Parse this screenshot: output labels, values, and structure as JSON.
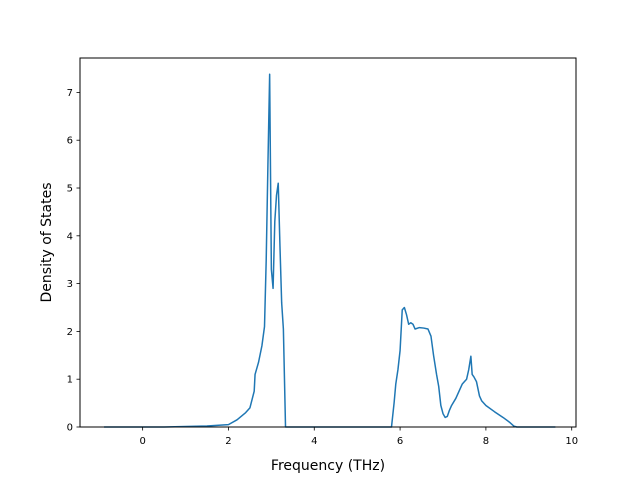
{
  "chart_data": {
    "type": "line",
    "title": "",
    "xlabel": "Frequency (THz)",
    "ylabel": "Density of States",
    "xlim": [
      -1.46,
      10.1
    ],
    "ylim": [
      0,
      7.72
    ],
    "xticks": [
      0,
      2,
      4,
      6,
      8,
      10
    ],
    "yticks": [
      0,
      1,
      2,
      3,
      4,
      5,
      6,
      7
    ],
    "grid": false,
    "series": [
      {
        "color": "#1f77b4",
        "x": [
          -0.9,
          0.0,
          0.5,
          1.0,
          1.5,
          2.0,
          2.2,
          2.4,
          2.5,
          2.6,
          2.62,
          2.7,
          2.78,
          2.84,
          2.88,
          2.92,
          2.96,
          3.0,
          3.04,
          3.08,
          3.12,
          3.16,
          3.2,
          3.24,
          3.28,
          3.33,
          3.38,
          3.4,
          3.42,
          3.8,
          4.5,
          5.0,
          5.5,
          5.8,
          5.86,
          5.9,
          5.95,
          6.0,
          6.05,
          6.1,
          6.15,
          6.2,
          6.25,
          6.3,
          6.35,
          6.45,
          6.55,
          6.65,
          6.72,
          6.78,
          6.85,
          6.9,
          6.95,
          7.0,
          7.05,
          7.1,
          7.15,
          7.2,
          7.3,
          7.45,
          7.55,
          7.6,
          7.65,
          7.68,
          7.72,
          7.78,
          7.85,
          7.9,
          8.0,
          8.2,
          8.4,
          8.55,
          8.65,
          8.72,
          8.78,
          9.0,
          9.3,
          9.62
        ],
        "y": [
          0.0,
          0.0,
          0.0,
          0.01,
          0.02,
          0.05,
          0.15,
          0.3,
          0.4,
          0.75,
          1.1,
          1.35,
          1.7,
          2.1,
          3.5,
          5.5,
          7.38,
          3.3,
          2.9,
          4.3,
          4.85,
          5.1,
          3.8,
          2.6,
          2.05,
          0.0,
          0.0,
          0.0,
          0.0,
          0.0,
          0.0,
          0.0,
          0.0,
          0.0,
          0.5,
          0.9,
          1.2,
          1.6,
          2.45,
          2.5,
          2.35,
          2.15,
          2.18,
          2.15,
          2.05,
          2.08,
          2.07,
          2.05,
          1.9,
          1.5,
          1.1,
          0.85,
          0.45,
          0.28,
          0.2,
          0.22,
          0.35,
          0.45,
          0.6,
          0.9,
          1.0,
          1.2,
          1.48,
          1.1,
          1.05,
          0.95,
          0.65,
          0.55,
          0.45,
          0.32,
          0.2,
          0.1,
          0.02,
          0.0,
          0.0,
          0.0,
          0.0,
          0.0
        ]
      }
    ]
  }
}
